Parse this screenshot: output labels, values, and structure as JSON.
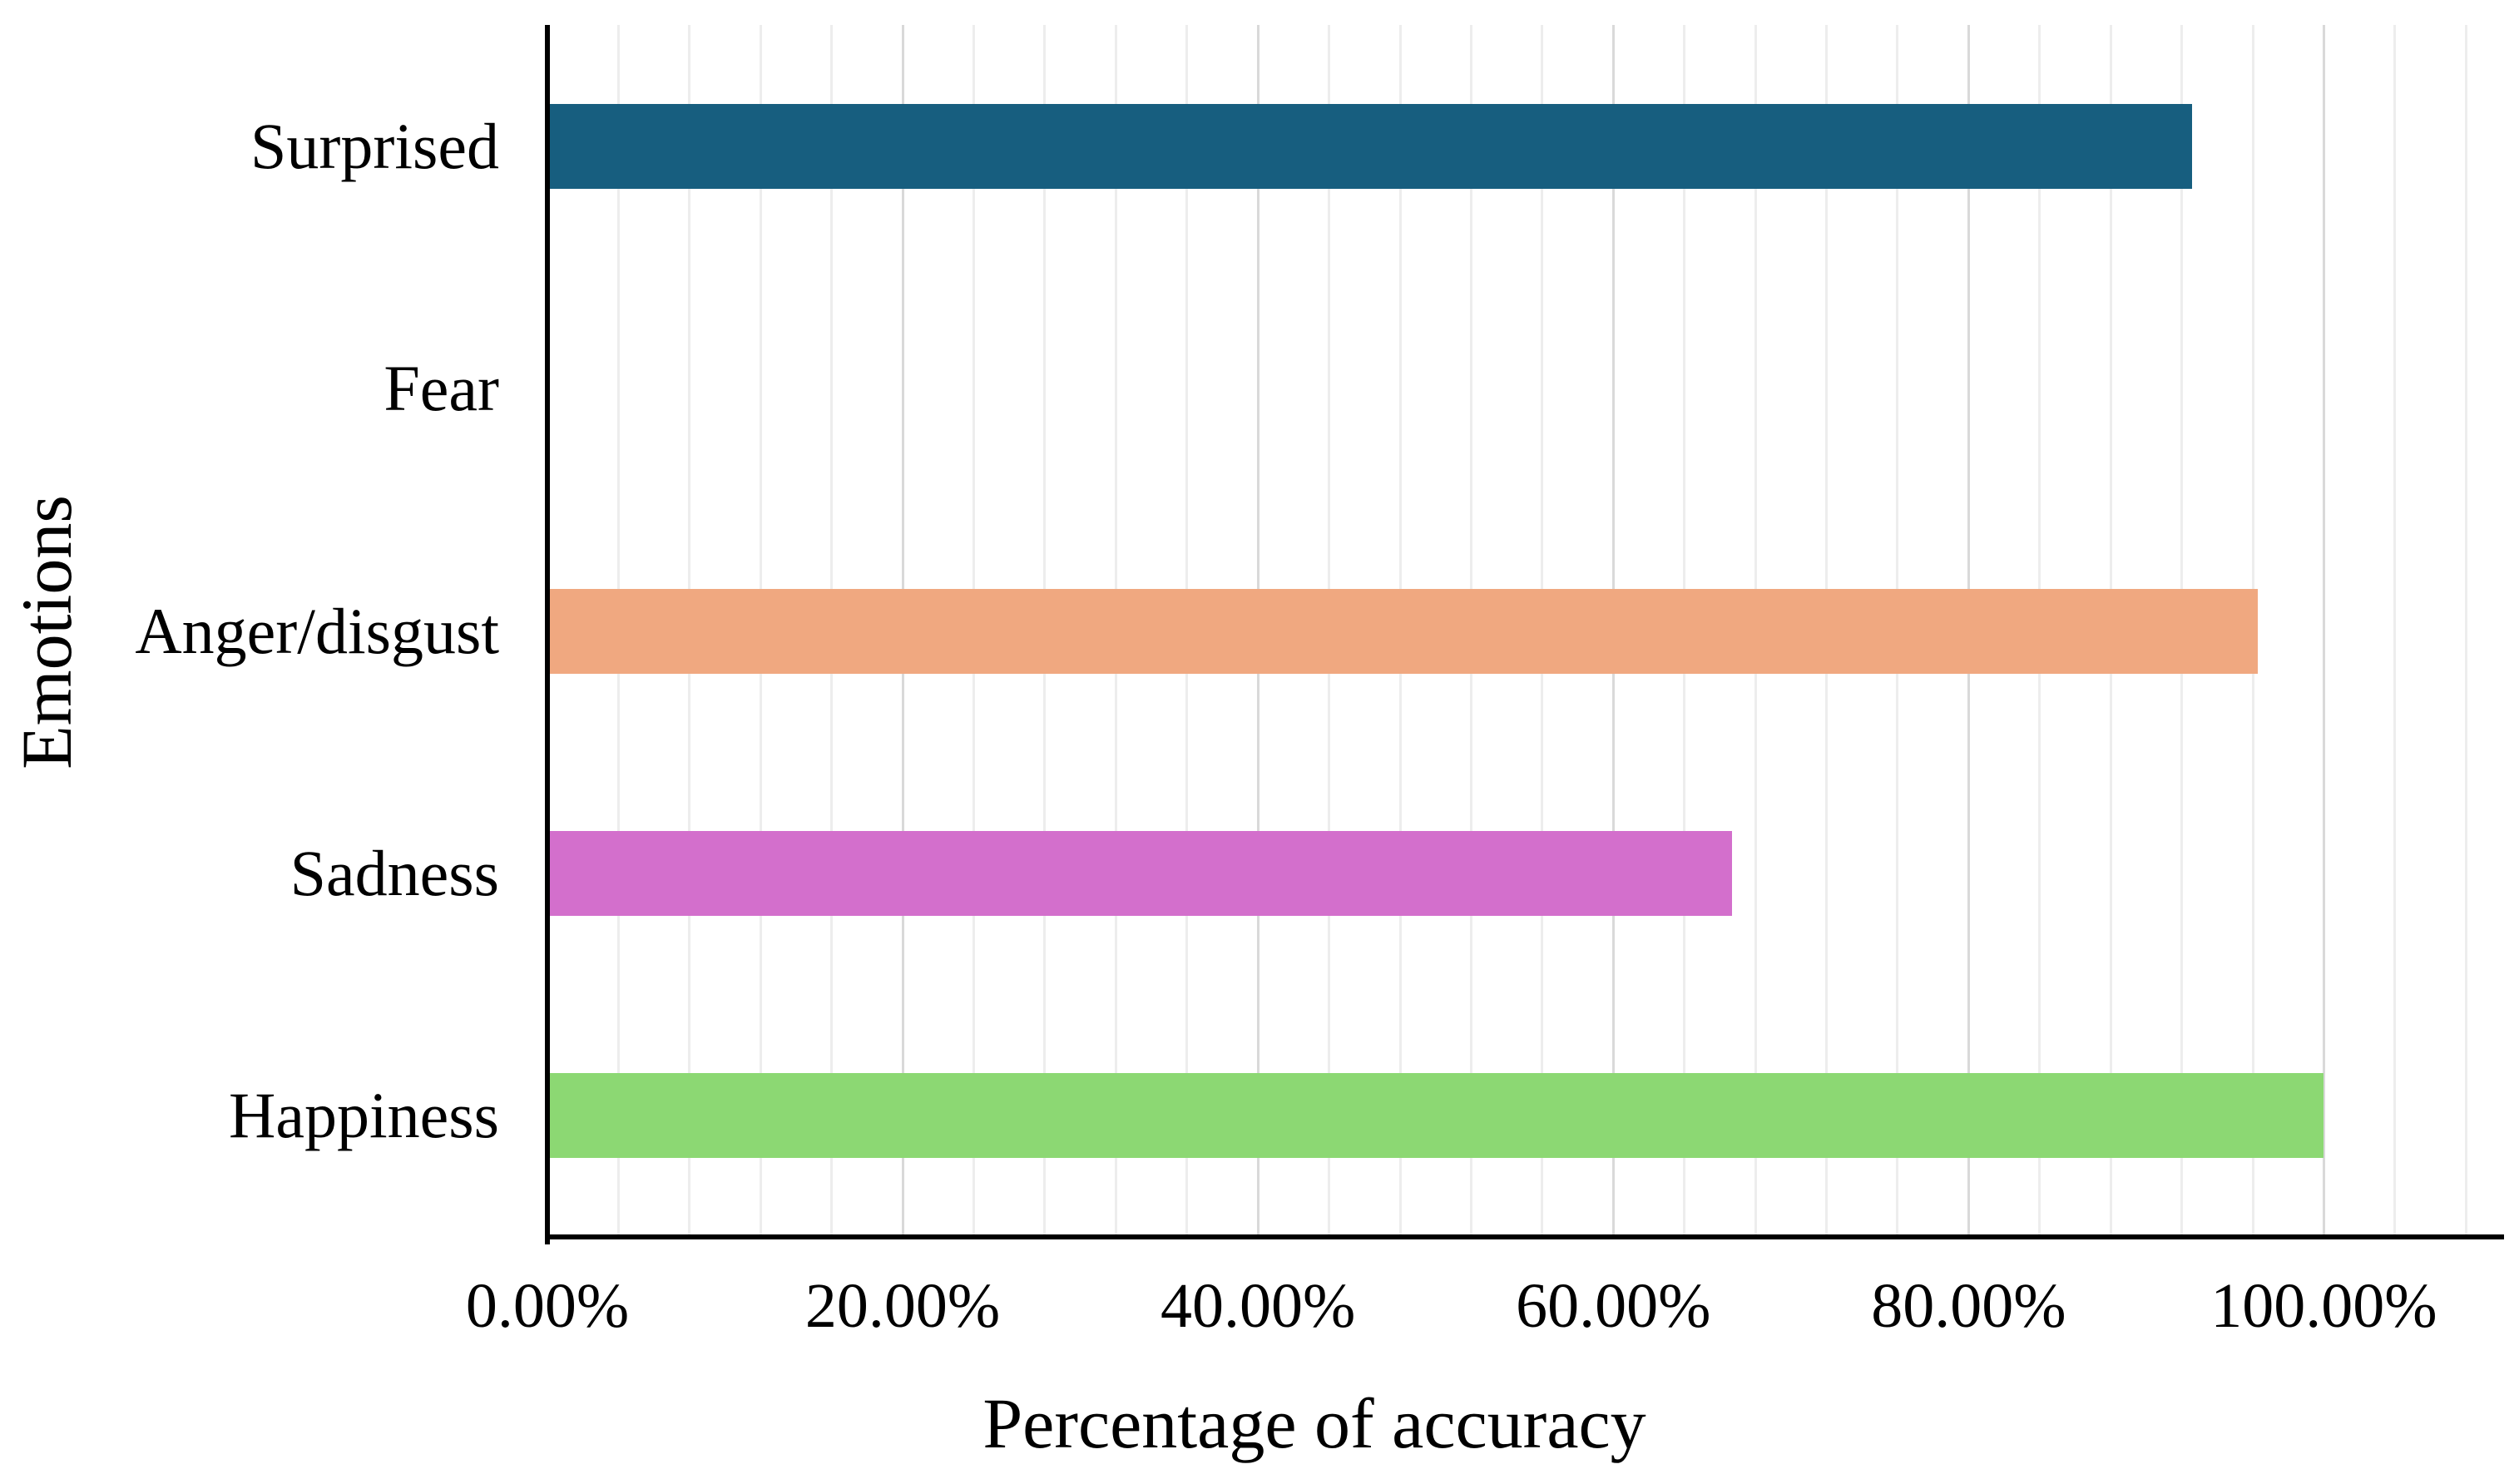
{
  "chart_data": {
    "type": "bar",
    "orientation": "horizontal",
    "title": "",
    "xlabel": "Percentage of accuracy",
    "ylabel": "Emotions",
    "categories": [
      "Surprised",
      "Fear",
      "Anger/disgust",
      "Sadness",
      "Happiness"
    ],
    "series": [
      {
        "name": "Percentage of accuracy",
        "values": [
          92.59,
          0,
          96.3,
          66.67,
          100.0
        ]
      }
    ],
    "value_unit": "percent",
    "bar_colors": [
      "#175E7F",
      "",
      "#F0A880",
      "#D36FCC",
      "#8CD873"
    ],
    "x_axis": {
      "min": 0,
      "max": 110,
      "major_unit": 20,
      "minor_unit": 4,
      "tick_values": [
        0,
        20,
        40,
        60,
        80,
        100
      ],
      "tick_labels": [
        "0.00%",
        "20.00%",
        "40.00%",
        "60.00%",
        "80.00%",
        "100.00%"
      ],
      "minor_gridlines": true,
      "major_gridlines": true
    },
    "y_axis": {
      "categories_top_to_bottom": [
        "Surprised",
        "Fear",
        "Anger/disgust",
        "Sadness",
        "Happiness"
      ]
    },
    "legend": "none",
    "colors": {
      "background": "#FFFFFF",
      "axis_line": "#000000",
      "gridline_minor": "#EDEDED",
      "gridline_major": "#D9D9D9",
      "text": "#000000"
    }
  }
}
